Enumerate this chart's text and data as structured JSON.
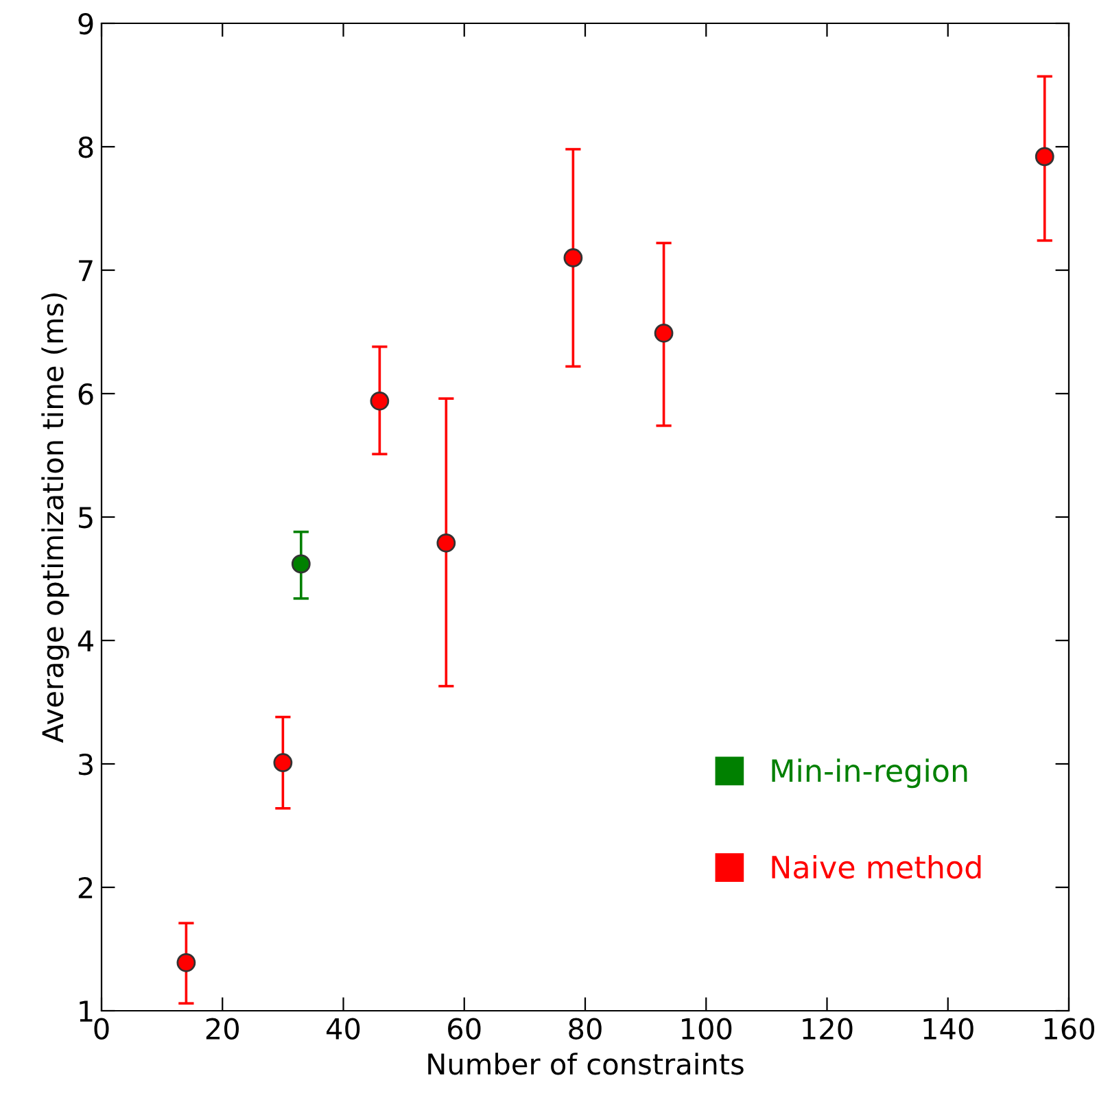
{
  "chart_data": {
    "type": "scatter",
    "xlabel": "Number of constraints",
    "ylabel": "Average optimization time (ms)",
    "xlim": [
      0,
      160
    ],
    "xticks": [
      0,
      20,
      40,
      60,
      80,
      100,
      120,
      140,
      160
    ],
    "ylim": [
      1,
      9
    ],
    "yticks": [
      1,
      2,
      3,
      4,
      5,
      6,
      7,
      8,
      9
    ],
    "grid": false,
    "legend": "bottom right",
    "marker": "circle",
    "series": [
      {
        "name": "Min-in-region",
        "color": "#008000",
        "x": [
          33
        ],
        "values": [
          4.62
        ],
        "errors": [
          [
            4.34,
            4.88
          ]
        ]
      },
      {
        "name": "Naive method",
        "color": "#ff0000",
        "x": [
          14,
          30,
          46,
          57,
          78,
          93,
          156
        ],
        "values": [
          1.39,
          3.01,
          5.94,
          4.79,
          7.1,
          6.49,
          7.92
        ],
        "errors": [
          [
            1.06,
            1.71
          ],
          [
            2.64,
            3.38
          ],
          [
            5.51,
            6.38
          ],
          [
            3.63,
            5.96
          ],
          [
            6.22,
            7.98
          ],
          [
            5.74,
            7.22
          ],
          [
            7.24,
            8.57
          ]
        ]
      }
    ]
  }
}
